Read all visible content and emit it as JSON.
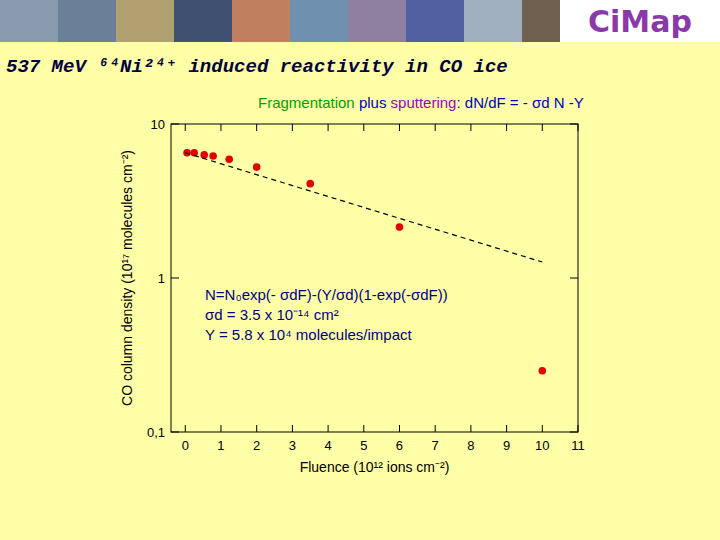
{
  "chart_data": {
    "type": "scatter",
    "logo": "CiMap",
    "title": "537 MeV ⁶⁴Ni²⁴⁺ induced reactivity in CO ice",
    "subtitle_parts": [
      {
        "text": "Fragmentation",
        "color": "#00a000"
      },
      {
        "text": " plus ",
        "color": "#0000c0"
      },
      {
        "text": "sputtering",
        "color": "#a000c0"
      },
      {
        "text": ":  dN/dF = - σd N -Y",
        "color": "#0000c0"
      }
    ],
    "annotations": [
      "N=N₀exp(- σdF)-(Y/σd)(1-exp(-σdF))",
      "σd = 3.5 x 10⁻¹⁴ cm²",
      "Y  = 5.8 x 10⁴ molecules/impact"
    ],
    "x_label": "Fluence (10¹² ions cm⁻²)",
    "y_label": "CO column density (10¹⁷ molecules cm⁻²)",
    "log": "y",
    "xlim": [
      -0.4,
      11
    ],
    "ylim": [
      0.1,
      10
    ],
    "xticks": [
      0,
      1,
      2,
      3,
      4,
      5,
      6,
      7,
      8,
      9,
      10,
      11
    ],
    "yticks": [
      {
        "value": 0.1,
        "label": "0,1"
      },
      1,
      10
    ],
    "series": [
      {
        "type": "scatter",
        "marker": "circle",
        "color": "#e00000",
        "x": [
          0.05,
          0.25,
          0.53,
          0.78,
          1.23,
          2.0,
          3.5,
          6.0,
          10.0
        ],
        "values": [
          6.5,
          6.5,
          6.3,
          6.2,
          5.9,
          5.25,
          4.1,
          2.14,
          0.25
        ]
      },
      {
        "type": "line",
        "line_style": "dashed",
        "color": "#000000",
        "x": [
          0,
          10
        ],
        "values": [
          6.5,
          1.27
        ]
      }
    ]
  }
}
